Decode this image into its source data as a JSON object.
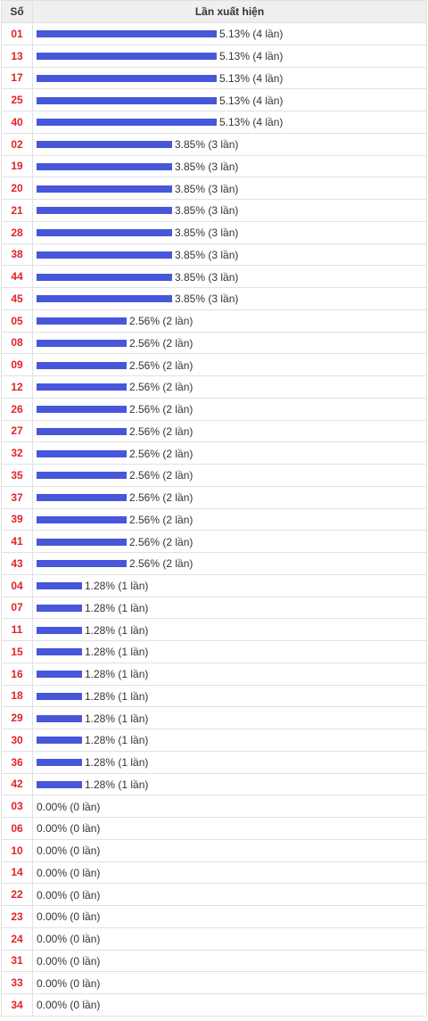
{
  "header": {
    "col_number": "Số",
    "col_frequency": "Lần xuất hiện"
  },
  "bar_color": "#4856d9",
  "number_color": "#e2222a",
  "chart_data": {
    "type": "bar",
    "orientation": "horizontal",
    "max_count": 4,
    "rows": [
      {
        "number": "01",
        "count": 4,
        "label": "5.13% (4 lần)"
      },
      {
        "number": "13",
        "count": 4,
        "label": "5.13% (4 lần)"
      },
      {
        "number": "17",
        "count": 4,
        "label": "5.13% (4 lần)"
      },
      {
        "number": "25",
        "count": 4,
        "label": "5.13% (4 lần)"
      },
      {
        "number": "40",
        "count": 4,
        "label": "5.13% (4 lần)"
      },
      {
        "number": "02",
        "count": 3,
        "label": "3.85% (3 lần)"
      },
      {
        "number": "19",
        "count": 3,
        "label": "3.85% (3 lần)"
      },
      {
        "number": "20",
        "count": 3,
        "label": "3.85% (3 lần)"
      },
      {
        "number": "21",
        "count": 3,
        "label": "3.85% (3 lần)"
      },
      {
        "number": "28",
        "count": 3,
        "label": "3.85% (3 lần)"
      },
      {
        "number": "38",
        "count": 3,
        "label": "3.85% (3 lần)"
      },
      {
        "number": "44",
        "count": 3,
        "label": "3.85% (3 lần)"
      },
      {
        "number": "45",
        "count": 3,
        "label": "3.85% (3 lần)"
      },
      {
        "number": "05",
        "count": 2,
        "label": "2.56% (2 lần)"
      },
      {
        "number": "08",
        "count": 2,
        "label": "2.56% (2 lần)"
      },
      {
        "number": "09",
        "count": 2,
        "label": "2.56% (2 lần)"
      },
      {
        "number": "12",
        "count": 2,
        "label": "2.56% (2 lần)"
      },
      {
        "number": "26",
        "count": 2,
        "label": "2.56% (2 lần)"
      },
      {
        "number": "27",
        "count": 2,
        "label": "2.56% (2 lần)"
      },
      {
        "number": "32",
        "count": 2,
        "label": "2.56% (2 lần)"
      },
      {
        "number": "35",
        "count": 2,
        "label": "2.56% (2 lần)"
      },
      {
        "number": "37",
        "count": 2,
        "label": "2.56% (2 lần)"
      },
      {
        "number": "39",
        "count": 2,
        "label": "2.56% (2 lần)"
      },
      {
        "number": "41",
        "count": 2,
        "label": "2.56% (2 lần)"
      },
      {
        "number": "43",
        "count": 2,
        "label": "2.56% (2 lần)"
      },
      {
        "number": "04",
        "count": 1,
        "label": "1.28% (1 lần)"
      },
      {
        "number": "07",
        "count": 1,
        "label": "1.28% (1 lần)"
      },
      {
        "number": "11",
        "count": 1,
        "label": "1.28% (1 lần)"
      },
      {
        "number": "15",
        "count": 1,
        "label": "1.28% (1 lần)"
      },
      {
        "number": "16",
        "count": 1,
        "label": "1.28% (1 lần)"
      },
      {
        "number": "18",
        "count": 1,
        "label": "1.28% (1 lần)"
      },
      {
        "number": "29",
        "count": 1,
        "label": "1.28% (1 lần)"
      },
      {
        "number": "30",
        "count": 1,
        "label": "1.28% (1 lần)"
      },
      {
        "number": "36",
        "count": 1,
        "label": "1.28% (1 lần)"
      },
      {
        "number": "42",
        "count": 1,
        "label": "1.28% (1 lần)"
      },
      {
        "number": "03",
        "count": 0,
        "label": "0.00% (0 lần)"
      },
      {
        "number": "06",
        "count": 0,
        "label": "0.00% (0 lần)"
      },
      {
        "number": "10",
        "count": 0,
        "label": "0.00% (0 lần)"
      },
      {
        "number": "14",
        "count": 0,
        "label": "0.00% (0 lần)"
      },
      {
        "number": "22",
        "count": 0,
        "label": "0.00% (0 lần)"
      },
      {
        "number": "23",
        "count": 0,
        "label": "0.00% (0 lần)"
      },
      {
        "number": "24",
        "count": 0,
        "label": "0.00% (0 lần)"
      },
      {
        "number": "31",
        "count": 0,
        "label": "0.00% (0 lần)"
      },
      {
        "number": "33",
        "count": 0,
        "label": "0.00% (0 lần)"
      },
      {
        "number": "34",
        "count": 0,
        "label": "0.00% (0 lần)"
      }
    ]
  }
}
